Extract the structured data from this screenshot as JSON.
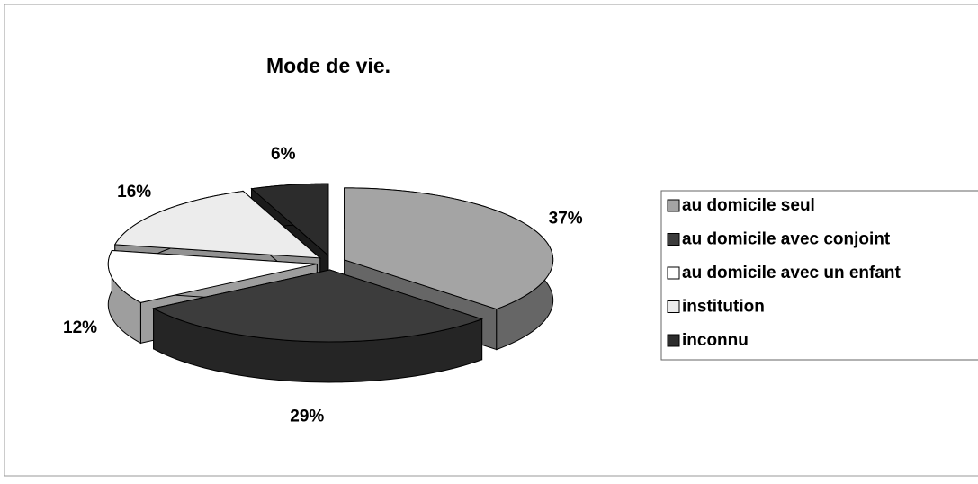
{
  "chart_data": {
    "type": "pie3d",
    "title": "Mode de vie.",
    "categories": [
      "au domicile seul",
      "au domicile avec conjoint",
      "au domicile avec un enfant",
      "institution",
      "inconnu"
    ],
    "values": [
      37,
      29,
      12,
      16,
      6
    ],
    "value_labels": [
      "37%",
      "29%",
      "12%",
      "16%",
      "6%"
    ],
    "colors": [
      "#a4a4a4",
      "#3c3c3c",
      "#ffffff",
      "#ececec",
      "#2c2c2c"
    ],
    "legend": "right"
  }
}
